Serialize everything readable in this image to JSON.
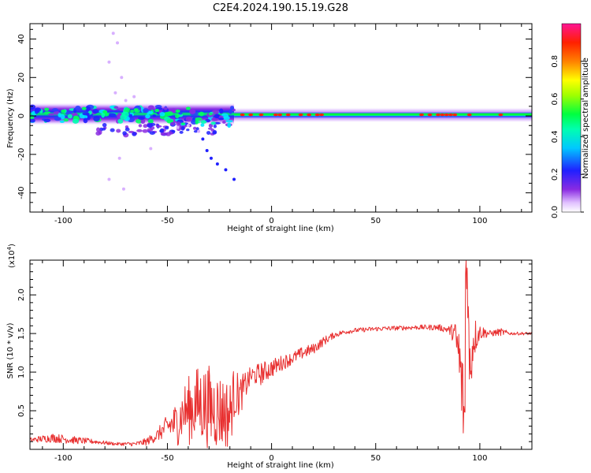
{
  "title": "C2E4.2024.190.15.19.G28",
  "colorbar": {
    "label": "Normalized spectral amplitude",
    "ticks": [
      "0.0",
      "0.2",
      "0.4",
      "0.6",
      "0.8"
    ],
    "tick_values": [
      0.0,
      0.2,
      0.4,
      0.6,
      0.8
    ],
    "range": [
      0,
      1
    ]
  },
  "chart_data": [
    {
      "type": "heatmap",
      "xlabel": "Height of straight line (km)",
      "ylabel": "Frequency (Hz)",
      "xlim": [
        -116,
        125
      ],
      "ylim": [
        -50,
        48
      ],
      "x_ticks": [
        "-100",
        "-50",
        "0",
        "50",
        "100"
      ],
      "x_tick_values": [
        -100,
        -50,
        0,
        50,
        100
      ],
      "y_ticks": [
        "40",
        "20",
        "0",
        "-20",
        "-40"
      ],
      "y_tick_values": [
        40,
        20,
        0,
        -20,
        -40
      ],
      "colormap": "rainbow-magenta",
      "colors": [
        "#ffffff",
        "#d8b0ff",
        "#8a2be2",
        "#2020ff",
        "#00e5ff",
        "#00ff40",
        "#ffff00",
        "#ff4000",
        "#ff1493"
      ],
      "band": {
        "segments": [
          {
            "x_start": -116,
            "x_end": -18,
            "center_hz": 1,
            "halfwidth_hz": 6,
            "peak_amplitude": 0.5
          },
          {
            "x_start": -18,
            "x_end": 125,
            "center_hz": 0.5,
            "halfwidth_hz": 4,
            "peak_amplitude": 0.9
          }
        ],
        "scatter_points": [
          {
            "x": -76,
            "y": 43
          },
          {
            "x": -74,
            "y": 38
          },
          {
            "x": -78,
            "y": 28
          },
          {
            "x": -75,
            "y": 12
          },
          {
            "x": -72,
            "y": 20
          },
          {
            "x": -70,
            "y": 8
          },
          {
            "x": -66,
            "y": 10
          },
          {
            "x": -73,
            "y": -22
          },
          {
            "x": -71,
            "y": -38
          },
          {
            "x": -78,
            "y": -33
          },
          {
            "x": -58,
            "y": -17
          },
          {
            "x": -33,
            "y": -12
          },
          {
            "x": -31,
            "y": -18
          },
          {
            "x": -29,
            "y": -22
          },
          {
            "x": -26,
            "y": -25
          },
          {
            "x": -22,
            "y": -28
          },
          {
            "x": -18,
            "y": -33
          },
          {
            "x": -35,
            "y": -8
          },
          {
            "x": -40,
            "y": -5
          },
          {
            "x": -45,
            "y": -6
          }
        ]
      }
    },
    {
      "type": "line",
      "xlabel": "Height of straight line (km)",
      "ylabel": "SNR (10 * v/v)",
      "scale_label": "(x10",
      "scale_exponent": "4",
      "scale_suffix": ")",
      "xlim": [
        -116,
        125
      ],
      "ylim": [
        0,
        2.45
      ],
      "x_ticks": [
        "-100",
        "-50",
        "0",
        "50",
        "100"
      ],
      "x_tick_values": [
        -100,
        -50,
        0,
        50,
        100
      ],
      "y_ticks": [
        "0.5",
        "1.0",
        "1.5",
        "2.0"
      ],
      "y_tick_values": [
        0.5,
        1.0,
        1.5,
        2.0
      ],
      "line_color": "#e83030",
      "series": [
        {
          "x": [
            -116,
            -105,
            -95,
            -85,
            -75,
            -65,
            -60,
            -55,
            -50,
            -45,
            -42,
            -40,
            -35,
            -30,
            -25,
            -20,
            -18,
            -15,
            -10,
            -5,
            0,
            5,
            10,
            15,
            20,
            25,
            30,
            35,
            40,
            50,
            60,
            70,
            80,
            85,
            88,
            90,
            92,
            93,
            94,
            95,
            97,
            100,
            105,
            110,
            115,
            120,
            125
          ],
          "values": [
            0.12,
            0.15,
            0.12,
            0.1,
            0.07,
            0.07,
            0.1,
            0.18,
            0.3,
            0.35,
            0.5,
            0.5,
            0.6,
            0.55,
            0.5,
            0.45,
            0.72,
            0.7,
            0.95,
            0.98,
            1.05,
            1.12,
            1.18,
            1.25,
            1.3,
            1.4,
            1.48,
            1.52,
            1.54,
            1.56,
            1.57,
            1.58,
            1.58,
            1.55,
            1.5,
            1.2,
            0.6,
            0.3,
            2.4,
            1.0,
            1.45,
            1.52,
            1.5,
            1.52,
            1.5,
            1.5,
            1.5
          ],
          "noise": [
            0.03,
            0.06,
            0.05,
            0.03,
            0.02,
            0.03,
            0.05,
            0.08,
            0.15,
            0.3,
            0.35,
            0.45,
            0.5,
            0.55,
            0.5,
            0.45,
            0.35,
            0.25,
            0.12,
            0.15,
            0.12,
            0.1,
            0.08,
            0.08,
            0.07,
            0.06,
            0.04,
            0.03,
            0.03,
            0.03,
            0.03,
            0.03,
            0.04,
            0.05,
            0.15,
            0.5,
            0.6,
            0.5,
            0.4,
            0.5,
            0.3,
            0.1,
            0.04,
            0.05,
            0.02,
            0.02,
            0.02
          ]
        }
      ]
    }
  ]
}
